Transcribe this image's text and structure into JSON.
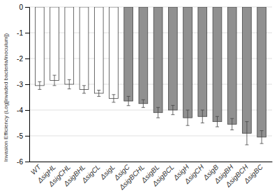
{
  "chart_data": {
    "type": "bar",
    "categories": [
      "WT",
      "ΔsigHL",
      "ΔsigCHL",
      "ΔsigBHL",
      "ΔsigCL",
      "ΔsigL",
      "ΔsigC",
      "ΔsigBCHL",
      "ΔsigBL",
      "ΔsigBCL",
      "ΔsigH",
      "ΔsigCH",
      "ΔsigB",
      "ΔsigBH",
      "ΔsigBCH",
      "ΔsigBC"
    ],
    "values": [
      -3.05,
      -2.85,
      -3.0,
      -3.2,
      -3.35,
      -3.55,
      -3.65,
      -3.75,
      -4.1,
      -4.0,
      -4.3,
      -4.25,
      -4.45,
      -4.55,
      -4.9,
      -5.05
    ],
    "errors": [
      0.15,
      0.2,
      0.18,
      0.15,
      0.12,
      0.15,
      0.18,
      0.15,
      0.2,
      0.18,
      0.3,
      0.25,
      0.2,
      0.22,
      0.45,
      0.25
    ],
    "colors": [
      "#ffffff",
      "#ffffff",
      "#ffffff",
      "#ffffff",
      "#ffffff",
      "#ffffff",
      "#909090",
      "#909090",
      "#909090",
      "#909090",
      "#909090",
      "#909090",
      "#909090",
      "#909090",
      "#909090",
      "#909090"
    ],
    "ylabel": "Invasion Efficiency (Log[invaded bacteria/inoculum])",
    "ylim": [
      -6,
      0
    ],
    "yticks": [
      0,
      -1,
      -2,
      -3,
      -4,
      -5,
      -6
    ],
    "grid": true
  }
}
